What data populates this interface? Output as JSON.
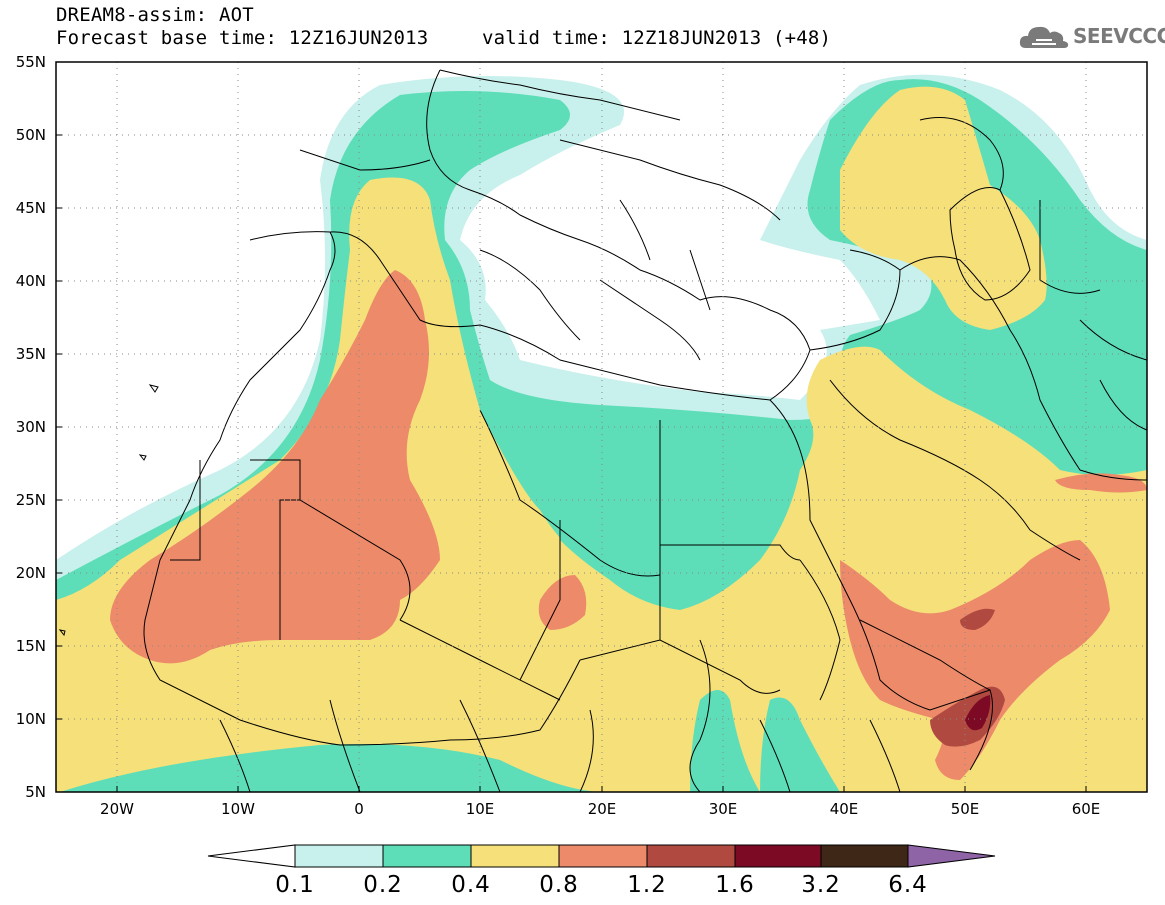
{
  "header": {
    "title_line1": "DREAM8-assim: AOT",
    "title_line2": "Forecast base time: 12Z16JUN2013",
    "valid_time": "valid time: 12Z18JUN2013 (+48)"
  },
  "logo": {
    "text": "SEEVCCC",
    "icon": "cloud-icon"
  },
  "map": {
    "lat_labels": [
      "55N",
      "50N",
      "45N",
      "40N",
      "35N",
      "30N",
      "25N",
      "20N",
      "15N",
      "10N",
      "5N"
    ],
    "lon_labels": [
      "20W",
      "10W",
      "0",
      "10E",
      "20E",
      "30E",
      "40E",
      "50E",
      "60E"
    ],
    "grid": "dotted",
    "projection": "lat-lon",
    "extent": {
      "lon": [
        -25,
        65
      ],
      "lat": [
        5,
        55
      ]
    },
    "colors": {
      "c0": "#c8f0ec",
      "c1": "#5ddeb8",
      "c2": "#f5e07a",
      "c3": "#ec8a6a",
      "c4": "#b04a40",
      "c5": "#7d0a24",
      "c6": "#3e2716",
      "c7": "#8e64a6"
    }
  },
  "colorbar": {
    "labels": [
      "0.1",
      "0.2",
      "0.4",
      "0.8",
      "1.2",
      "1.6",
      "3.2",
      "6.4"
    ],
    "colors": [
      "#c8f0ec",
      "#5ddeb8",
      "#f5e07a",
      "#ec8a6a",
      "#b04a40",
      "#7d0a24",
      "#3e2716"
    ],
    "extend_min_color": "#ffffff",
    "extend_max_color": "#8e64a6"
  }
}
